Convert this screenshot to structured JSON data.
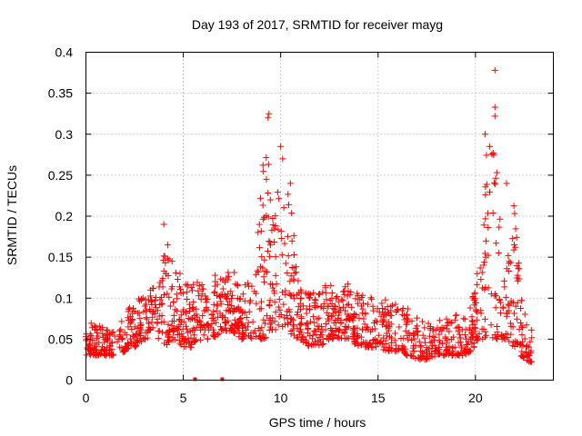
{
  "chart_data": {
    "type": "scatter",
    "title": "Day 193 of 2017, SRMTID for receiver mayg",
    "xlabel": "GPS time / hours",
    "ylabel": "SRMTID / TECUs",
    "xlim": [
      0,
      24
    ],
    "ylim": [
      0,
      0.4
    ],
    "xticks": [
      0,
      5,
      10,
      15,
      20
    ],
    "xtick_labels": [
      "0",
      "5",
      "10",
      "15",
      "20"
    ],
    "yticks": [
      0,
      0.05,
      0.1,
      0.15,
      0.2,
      0.25,
      0.3,
      0.35,
      0.4
    ],
    "ytick_labels": [
      "0",
      "0.05",
      "0.1",
      "0.15",
      "0.2",
      "0.25",
      "0.3",
      "0.35",
      "0.4"
    ],
    "grid": true,
    "marker": "+",
    "color": "#ff0000",
    "series": [
      {
        "name": "SRMTID",
        "envelope_x": [
          0,
          0.5,
          1,
          1.5,
          2,
          2.5,
          3,
          3.5,
          4,
          4.5,
          5,
          5.5,
          6,
          6.5,
          7,
          7.5,
          8,
          8.5,
          9,
          9.3,
          9.6,
          10,
          10.3,
          10.6,
          11,
          11.5,
          12,
          12.5,
          13,
          13.5,
          14,
          14.5,
          15,
          15.5,
          16,
          16.5,
          17,
          17.5,
          18,
          18.5,
          19,
          19.5,
          20,
          20.3,
          20.6,
          21,
          21.3,
          21.6,
          22,
          22.3,
          22.6,
          22.9
        ],
        "envelope_low": [
          0.03,
          0.03,
          0.03,
          0.03,
          0.035,
          0.04,
          0.05,
          0.05,
          0.04,
          0.05,
          0.04,
          0.04,
          0.05,
          0.05,
          0.06,
          0.06,
          0.05,
          0.05,
          0.05,
          0.05,
          0.06,
          0.06,
          0.07,
          0.05,
          0.05,
          0.04,
          0.04,
          0.05,
          0.05,
          0.05,
          0.04,
          0.04,
          0.04,
          0.035,
          0.035,
          0.03,
          0.025,
          0.025,
          0.03,
          0.03,
          0.03,
          0.03,
          0.04,
          0.05,
          0.05,
          0.05,
          0.05,
          0.05,
          0.04,
          0.03,
          0.025,
          0.02
        ],
        "envelope_high": [
          0.07,
          0.07,
          0.065,
          0.06,
          0.08,
          0.1,
          0.11,
          0.115,
          0.16,
          0.15,
          0.12,
          0.12,
          0.12,
          0.13,
          0.13,
          0.14,
          0.11,
          0.13,
          0.25,
          0.32,
          0.2,
          0.28,
          0.24,
          0.2,
          0.12,
          0.11,
          0.11,
          0.12,
          0.11,
          0.12,
          0.11,
          0.1,
          0.11,
          0.1,
          0.1,
          0.09,
          0.08,
          0.07,
          0.07,
          0.08,
          0.08,
          0.08,
          0.12,
          0.18,
          0.3,
          0.3,
          0.2,
          0.2,
          0.22,
          0.13,
          0.08,
          0.06
        ],
        "peaks": [
          {
            "x": 4.0,
            "y": 0.19
          },
          {
            "x": 4.2,
            "y": 0.165
          },
          {
            "x": 9.35,
            "y": 0.32
          },
          {
            "x": 9.4,
            "y": 0.325
          },
          {
            "x": 10.0,
            "y": 0.285
          },
          {
            "x": 10.1,
            "y": 0.27
          },
          {
            "x": 10.5,
            "y": 0.24
          },
          {
            "x": 20.5,
            "y": 0.3
          },
          {
            "x": 21.0,
            "y": 0.378
          },
          {
            "x": 21.0,
            "y": 0.333
          },
          {
            "x": 21.0,
            "y": 0.322
          },
          {
            "x": 21.1,
            "y": 0.253
          },
          {
            "x": 21.6,
            "y": 0.24
          }
        ],
        "zero_markers_x": [
          5.6,
          7.0
        ]
      }
    ]
  }
}
